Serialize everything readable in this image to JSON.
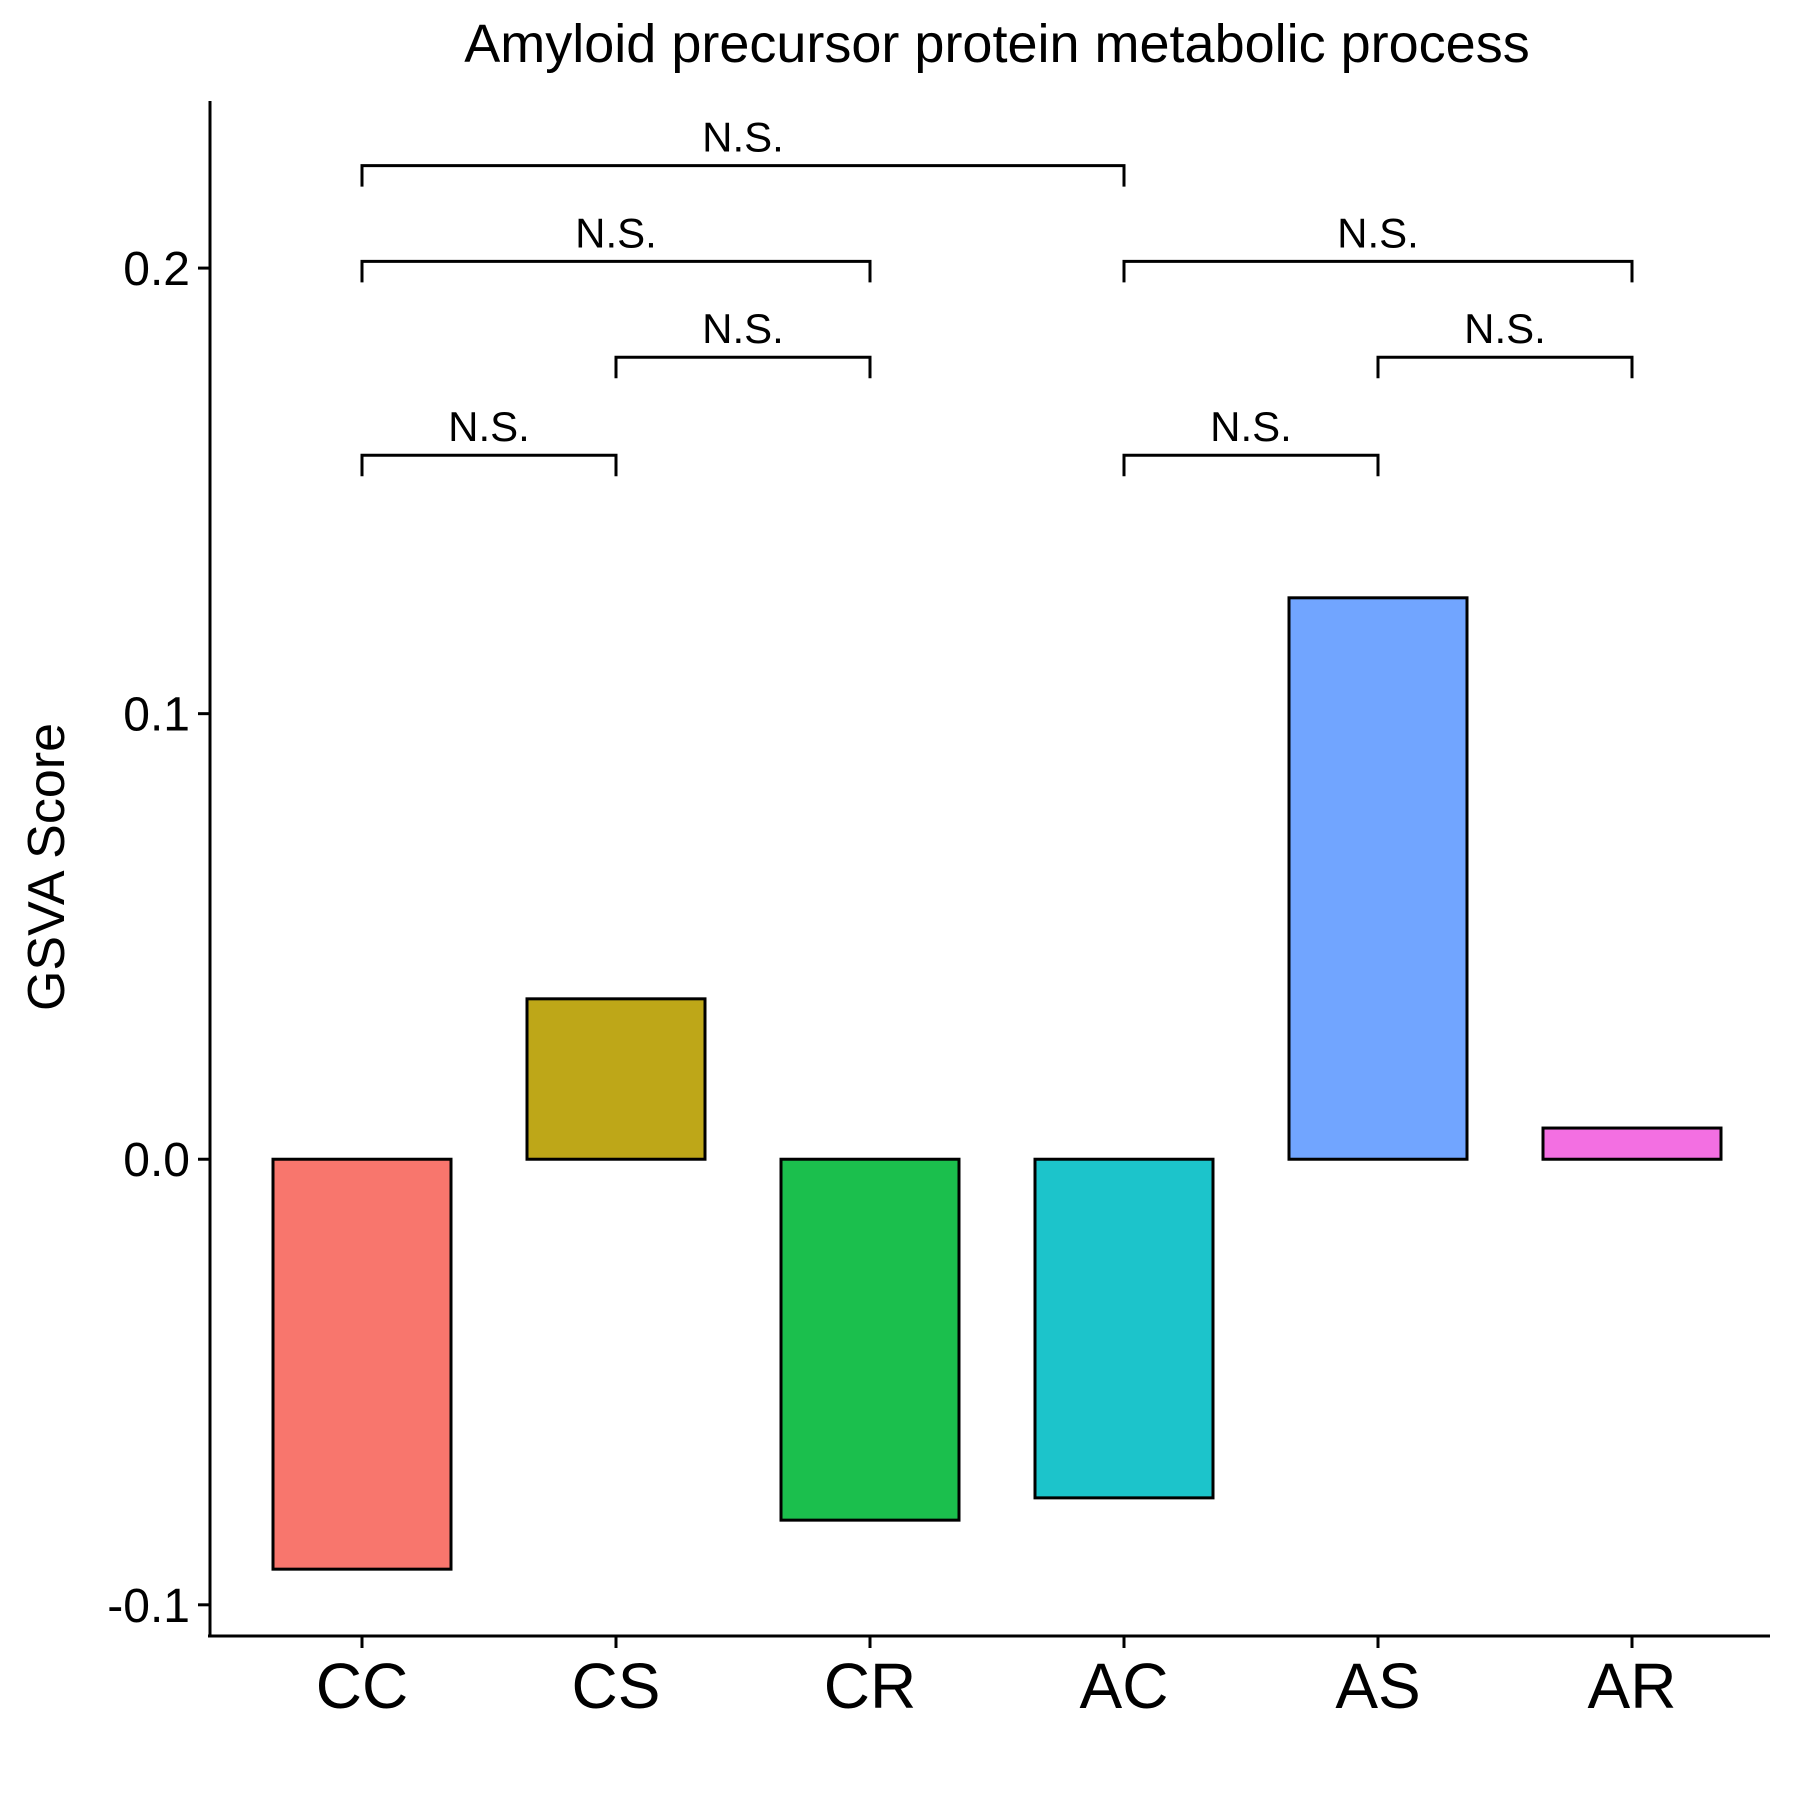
{
  "chart_data": {
    "type": "bar",
    "title": "Amyloid precursor protein metabolic process",
    "xlabel": "",
    "ylabel": "GSVA Score",
    "categories": [
      "CC",
      "CS",
      "CR",
      "AC",
      "AS",
      "AR"
    ],
    "values": [
      -0.092,
      0.036,
      -0.081,
      -0.076,
      0.126,
      0.007
    ],
    "colors": [
      "#F8766D",
      "#BEA718",
      "#1BBF4D",
      "#1CC4CB",
      "#71A5FF",
      "#F36FE2"
    ],
    "ylim": [
      -0.107,
      0.2375
    ],
    "yticks": [
      -0.1,
      0.0,
      0.1,
      0.2
    ],
    "ytick_labels": [
      "-0.1",
      "0.0",
      "0.1",
      "0.2"
    ],
    "grid": false,
    "legend": "none",
    "comparisons": [
      {
        "from": "CC",
        "to": "CS",
        "label": "N.S.",
        "y": 0.158
      },
      {
        "from": "CS",
        "to": "CR",
        "label": "N.S.",
        "y": 0.18
      },
      {
        "from": "CC",
        "to": "CR",
        "label": "N.S.",
        "y": 0.2015
      },
      {
        "from": "CC",
        "to": "AC",
        "label": "N.S.",
        "y": 0.223
      },
      {
        "from": "AC",
        "to": "AS",
        "label": "N.S.",
        "y": 0.158
      },
      {
        "from": "AS",
        "to": "AR",
        "label": "N.S.",
        "y": 0.18
      },
      {
        "from": "AC",
        "to": "AR",
        "label": "N.S.",
        "y": 0.2015
      }
    ]
  }
}
